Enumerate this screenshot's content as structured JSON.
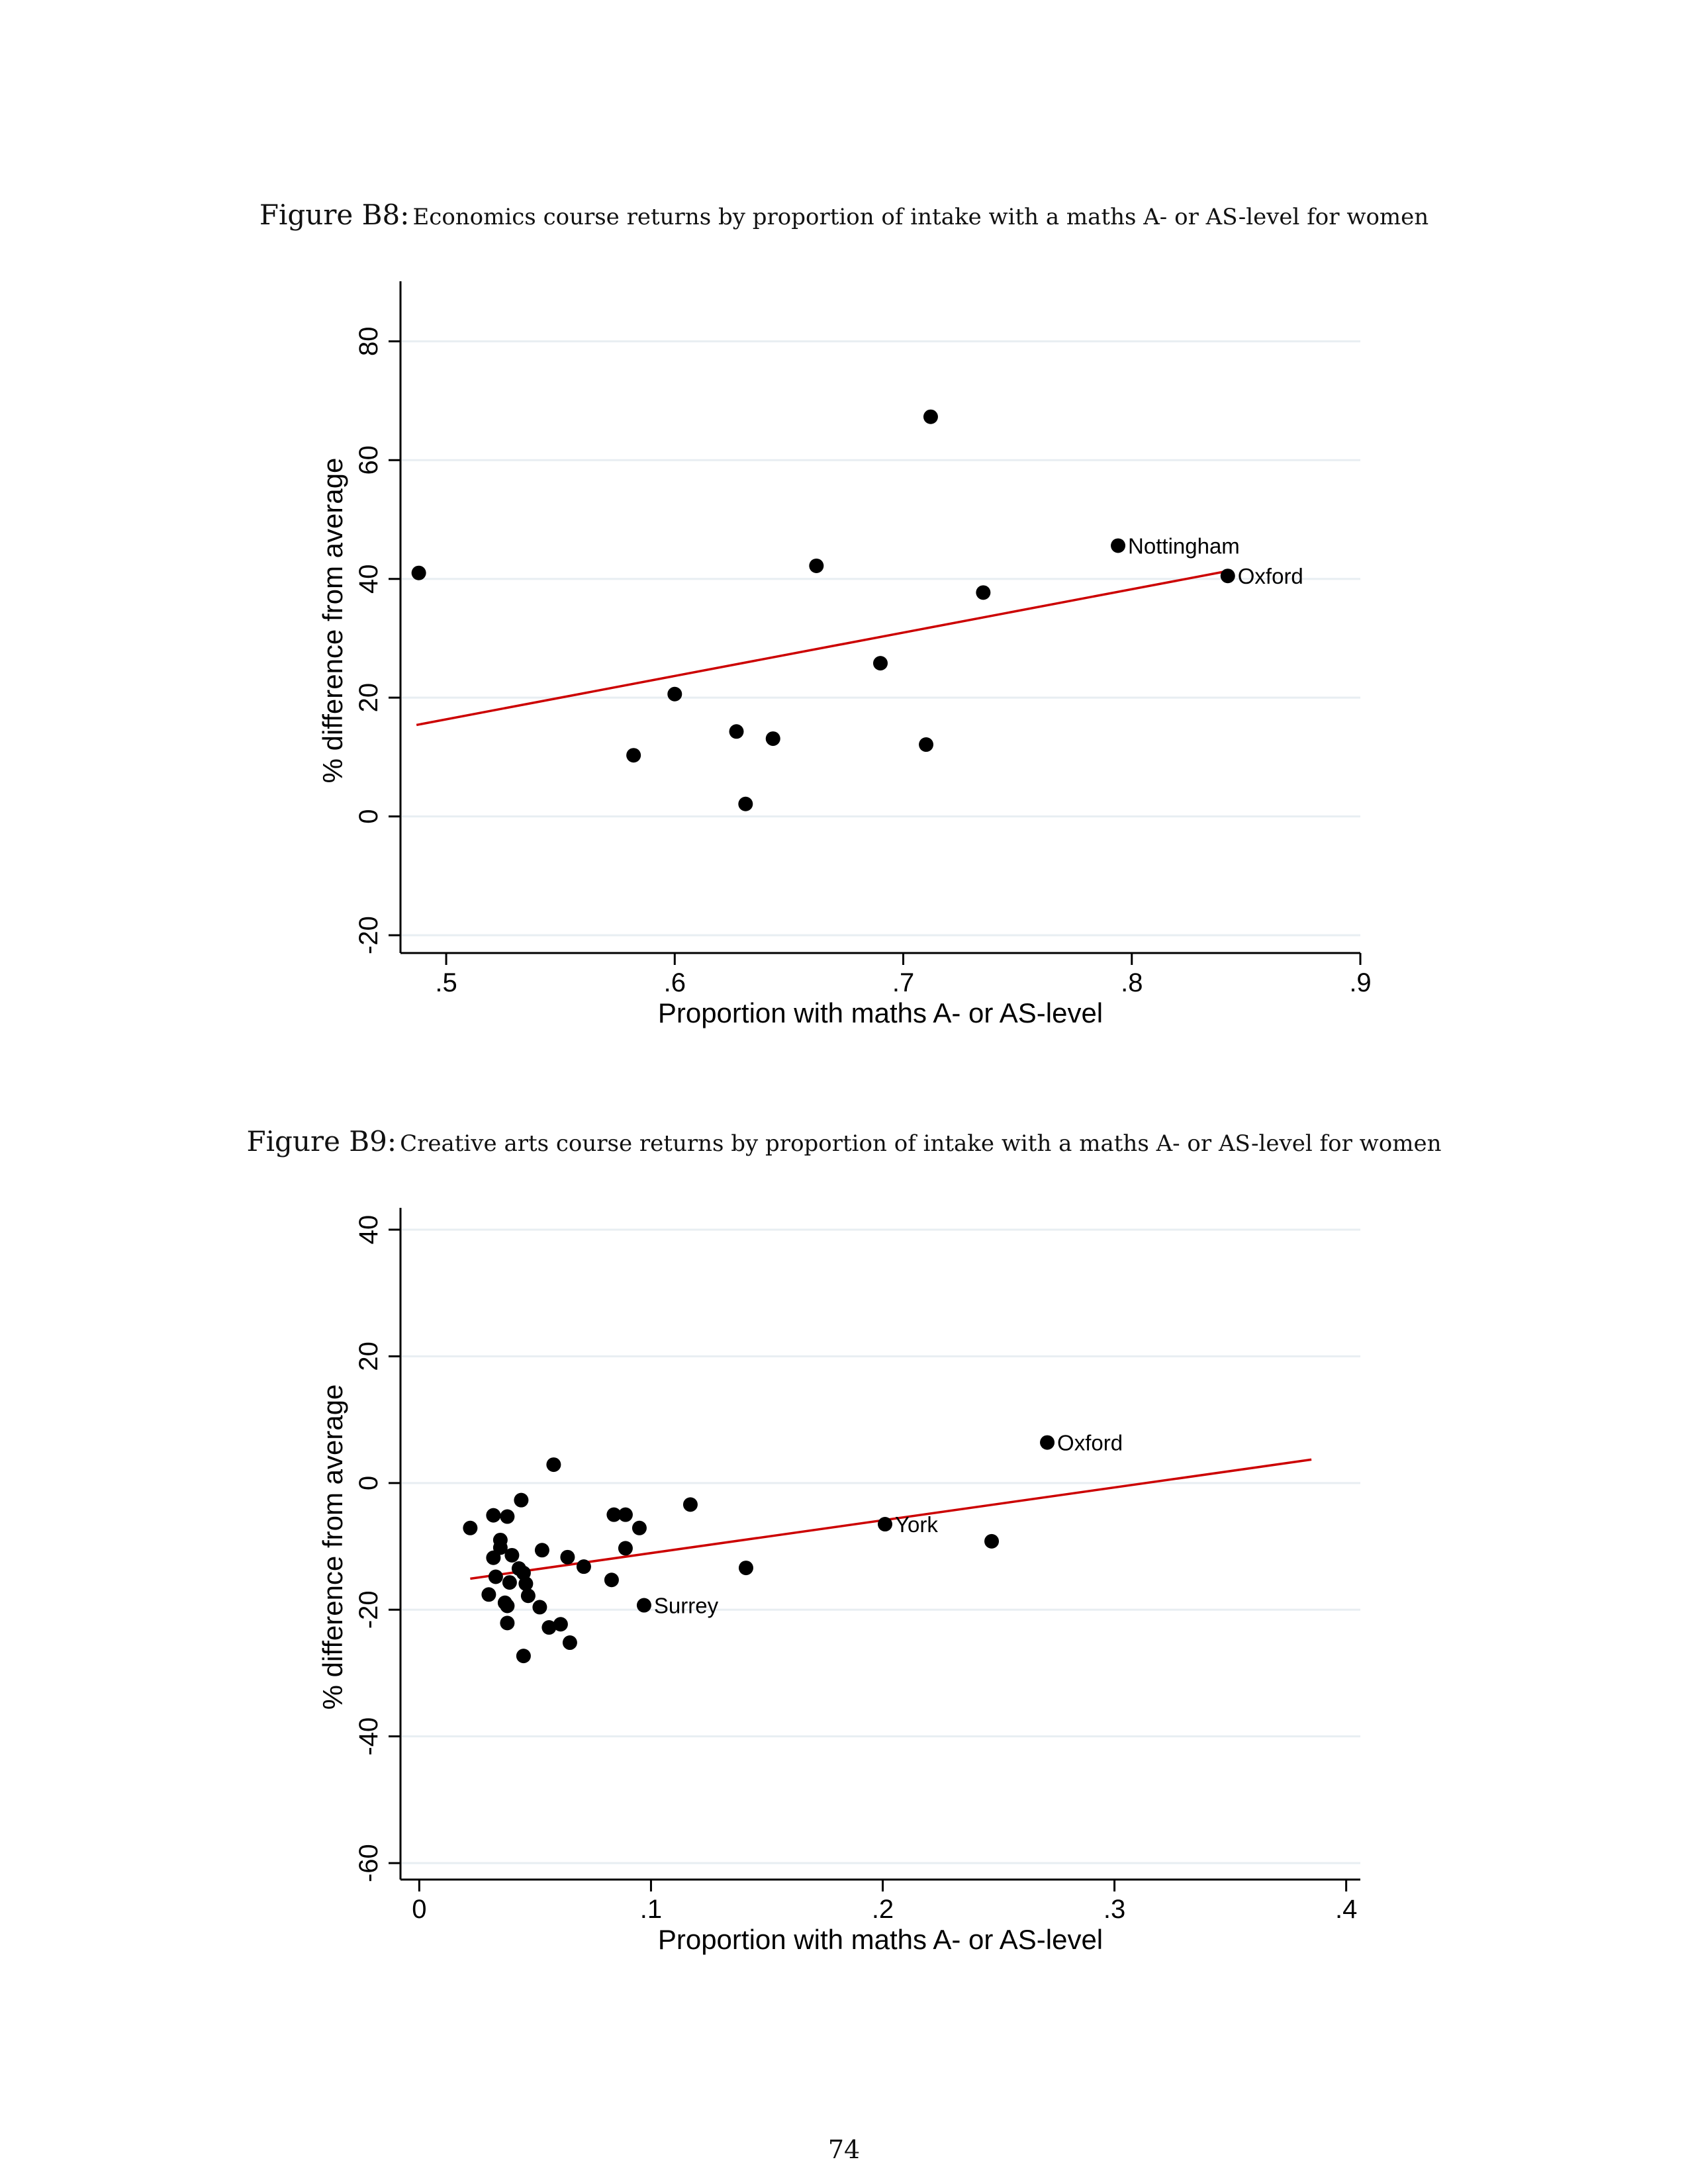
{
  "page_number": "74",
  "figures": [
    {
      "label": "Figure B8:",
      "caption": "Economics course returns by proportion of intake with a maths A- or AS-level for women"
    },
    {
      "label": "Figure B9:",
      "caption": "Creative arts course returns by proportion of intake with a maths A- or AS-level for women"
    }
  ],
  "chart_data": [
    {
      "type": "scatter",
      "title": "",
      "xlabel": "Proportion with maths A- or AS-level",
      "ylabel": "% difference from average",
      "xlim": [
        0.48,
        0.9
      ],
      "ylim": [
        -23,
        89
      ],
      "xticks": [
        {
          "v": 0.5,
          "label": ".5"
        },
        {
          "v": 0.6,
          "label": ".6"
        },
        {
          "v": 0.7,
          "label": ".7"
        },
        {
          "v": 0.8,
          "label": ".8"
        },
        {
          "v": 0.9,
          "label": ".9"
        }
      ],
      "yticks": [
        {
          "v": -20,
          "label": "-20"
        },
        {
          "v": 0,
          "label": "0"
        },
        {
          "v": 20,
          "label": "20"
        },
        {
          "v": 40,
          "label": "40"
        },
        {
          "v": 60,
          "label": "60"
        },
        {
          "v": 80,
          "label": "80"
        }
      ],
      "grid": true,
      "point_color": "#000000",
      "fit_color": "#cc0000",
      "points": [
        {
          "x": 0.488,
          "y": 41.0,
          "label": ""
        },
        {
          "x": 0.582,
          "y": 10.3,
          "label": ""
        },
        {
          "x": 0.6,
          "y": 20.6,
          "label": ""
        },
        {
          "x": 0.627,
          "y": 14.3,
          "label": ""
        },
        {
          "x": 0.631,
          "y": 2.1,
          "label": ""
        },
        {
          "x": 0.643,
          "y": 13.1,
          "label": ""
        },
        {
          "x": 0.662,
          "y": 42.2,
          "label": ""
        },
        {
          "x": 0.69,
          "y": 25.8,
          "label": ""
        },
        {
          "x": 0.71,
          "y": 12.1,
          "label": ""
        },
        {
          "x": 0.712,
          "y": 67.3,
          "label": ""
        },
        {
          "x": 0.735,
          "y": 37.7,
          "label": ""
        },
        {
          "x": 0.794,
          "y": 45.6,
          "label": "Nottingham"
        },
        {
          "x": 0.842,
          "y": 40.5,
          "label": "Oxford"
        }
      ],
      "fit_line": {
        "x": [
          0.487,
          0.843
        ],
        "y": [
          15.4,
          41.4
        ]
      }
    },
    {
      "type": "scatter",
      "title": "",
      "xlabel": "Proportion with maths  A- or AS-level",
      "ylabel": "% difference from average",
      "xlim": [
        -0.0081,
        0.4061
      ],
      "ylim": [
        -62.6,
        42.4
      ],
      "xticks": [
        {
          "v": 0,
          "label": "0"
        },
        {
          "v": 0.1,
          "label": ".1"
        },
        {
          "v": 0.2,
          "label": ".2"
        },
        {
          "v": 0.3,
          "label": ".3"
        },
        {
          "v": 0.4,
          "label": ".4"
        }
      ],
      "yticks": [
        {
          "v": -60,
          "label": "-60"
        },
        {
          "v": -40,
          "label": "-40"
        },
        {
          "v": -20,
          "label": "-20"
        },
        {
          "v": 0,
          "label": "0"
        },
        {
          "v": 20,
          "label": "20"
        },
        {
          "v": 40,
          "label": "40"
        }
      ],
      "grid": true,
      "point_color": "#000000",
      "fit_color": "#cc0000",
      "points": [
        {
          "x": 0.022,
          "y": -7.1,
          "label": ""
        },
        {
          "x": 0.03,
          "y": -17.6,
          "label": ""
        },
        {
          "x": 0.032,
          "y": -5.1,
          "label": ""
        },
        {
          "x": 0.032,
          "y": -11.8,
          "label": ""
        },
        {
          "x": 0.033,
          "y": -14.8,
          "label": ""
        },
        {
          "x": 0.035,
          "y": -9.0,
          "label": ""
        },
        {
          "x": 0.035,
          "y": -10.2,
          "label": ""
        },
        {
          "x": 0.037,
          "y": -18.9,
          "label": ""
        },
        {
          "x": 0.038,
          "y": -5.3,
          "label": ""
        },
        {
          "x": 0.038,
          "y": -19.4,
          "label": ""
        },
        {
          "x": 0.038,
          "y": -22.1,
          "label": ""
        },
        {
          "x": 0.039,
          "y": -15.7,
          "label": ""
        },
        {
          "x": 0.04,
          "y": -11.4,
          "label": ""
        },
        {
          "x": 0.043,
          "y": -13.5,
          "label": ""
        },
        {
          "x": 0.044,
          "y": -2.7,
          "label": ""
        },
        {
          "x": 0.045,
          "y": -14.2,
          "label": ""
        },
        {
          "x": 0.046,
          "y": -15.9,
          "label": ""
        },
        {
          "x": 0.045,
          "y": -27.3,
          "label": ""
        },
        {
          "x": 0.047,
          "y": -17.8,
          "label": ""
        },
        {
          "x": 0.052,
          "y": -19.6,
          "label": ""
        },
        {
          "x": 0.053,
          "y": -10.6,
          "label": ""
        },
        {
          "x": 0.056,
          "y": -22.8,
          "label": ""
        },
        {
          "x": 0.058,
          "y": 2.9,
          "label": ""
        },
        {
          "x": 0.061,
          "y": -22.3,
          "label": ""
        },
        {
          "x": 0.064,
          "y": -11.7,
          "label": ""
        },
        {
          "x": 0.065,
          "y": -25.2,
          "label": ""
        },
        {
          "x": 0.071,
          "y": -13.2,
          "label": ""
        },
        {
          "x": 0.083,
          "y": -15.3,
          "label": ""
        },
        {
          "x": 0.084,
          "y": -5.0,
          "label": ""
        },
        {
          "x": 0.089,
          "y": -5.0,
          "label": ""
        },
        {
          "x": 0.089,
          "y": -10.3,
          "label": ""
        },
        {
          "x": 0.095,
          "y": -7.1,
          "label": ""
        },
        {
          "x": 0.097,
          "y": -19.3,
          "label": "Surrey"
        },
        {
          "x": 0.117,
          "y": -3.4,
          "label": ""
        },
        {
          "x": 0.141,
          "y": -13.4,
          "label": ""
        },
        {
          "x": 0.201,
          "y": -6.5,
          "label": "York"
        },
        {
          "x": 0.247,
          "y": -9.2,
          "label": ""
        },
        {
          "x": 0.271,
          "y": 6.4,
          "label": "Oxford"
        }
      ],
      "fit_line": {
        "x": [
          0.022,
          0.385
        ],
        "y": [
          -15.1,
          3.7
        ]
      }
    }
  ]
}
